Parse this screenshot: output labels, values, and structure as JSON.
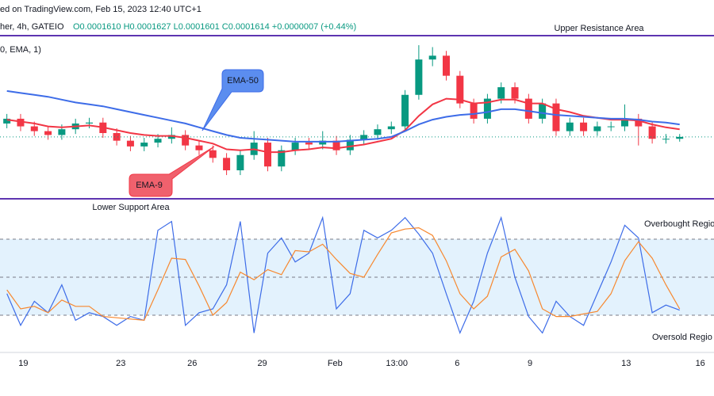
{
  "header": {
    "source": "ed on TradingView.com, Feb 15, 2023 12:40 UTC+1",
    "symbol": "her, 4h, GATEIO",
    "ohlc": "O0.0001610 H0.0001627 L0.0001601 C0.0001614 +0.0000007 (+0.44%)",
    "indicator": "0, EMA, 1)"
  },
  "chart_data": [
    {
      "type": "candlestick",
      "xlim": [
        -0.5,
        51.5
      ],
      "xticks": [
        {
          "value": 1.2,
          "label": "19"
        },
        {
          "value": 8.3,
          "label": "23"
        },
        {
          "value": 13.5,
          "label": "26"
        },
        {
          "value": 18.6,
          "label": "29"
        },
        {
          "value": 23.9,
          "label": "Feb"
        },
        {
          "value": 28.4,
          "label": "13:00"
        },
        {
          "value": 32.8,
          "label": "6"
        },
        {
          "value": 38.1,
          "label": "9"
        },
        {
          "value": 45.1,
          "label": "13"
        },
        {
          "value": 50.5,
          "label": "16"
        }
      ],
      "ylim": [
        0.000155,
        0.000172
      ],
      "up_color": "#089981",
      "down_color": "#f23645",
      "open": [
        0.0001628,
        0.0001633,
        0.0001625,
        0.000162,
        0.0001616,
        0.0001622,
        0.0001628,
        0.0001629,
        0.0001618,
        0.000161,
        0.0001604,
        0.0001608,
        0.0001612,
        0.0001616,
        0.0001605,
        0.00016,
        0.0001592,
        0.0001579,
        0.0001595,
        0.0001608,
        0.0001583,
        0.00016,
        0.0001608,
        0.0001606,
        0.000161,
        0.00016,
        0.0001611,
        0.0001616,
        0.0001622,
        0.0001625,
        0.0001658,
        0.0001695,
        0.0001699,
        0.0001678,
        0.0001649,
        0.0001633,
        0.0001654,
        0.0001666,
        0.0001654,
        0.0001633,
        0.0001649,
        0.000162,
        0.0001629,
        0.000162,
        0.0001625,
        0.0001625,
        0.0001633,
        0.0001625,
        0.0001612,
        0.0001612
      ],
      "high": [
        0.0001638,
        0.0001638,
        0.000163,
        0.0001625,
        0.0001627,
        0.0001633,
        0.0001634,
        0.0001634,
        0.0001623,
        0.0001615,
        0.0001613,
        0.0001617,
        0.0001624,
        0.0001621,
        0.000161,
        0.0001605,
        0.0001597,
        0.00016,
        0.000162,
        0.0001613,
        0.0001605,
        0.0001613,
        0.0001613,
        0.000162,
        0.0001615,
        0.0001616,
        0.0001621,
        0.0001627,
        0.000163,
        0.0001663,
        0.000171,
        0.0001708,
        0.0001704,
        0.0001683,
        0.0001654,
        0.0001659,
        0.0001671,
        0.0001671,
        0.0001659,
        0.0001654,
        0.0001654,
        0.0001634,
        0.0001634,
        0.000163,
        0.000163,
        0.0001648,
        0.0001638,
        0.000163,
        0.0001617,
        0.0001617
      ],
      "low": [
        0.0001623,
        0.000162,
        0.0001615,
        0.0001611,
        0.0001611,
        0.0001617,
        0.0001623,
        0.0001613,
        0.0001605,
        0.0001599,
        0.0001599,
        0.0001603,
        0.0001607,
        0.00016,
        0.0001595,
        0.0001587,
        0.0001574,
        0.0001574,
        0.000159,
        0.0001578,
        0.0001578,
        0.0001595,
        0.0001601,
        0.0001601,
        0.0001595,
        0.0001595,
        0.0001606,
        0.0001611,
        0.0001617,
        0.000162,
        0.0001653,
        0.0001688,
        0.0001673,
        0.0001644,
        0.0001628,
        0.0001628,
        0.0001649,
        0.0001649,
        0.0001628,
        0.0001628,
        0.0001615,
        0.0001615,
        0.0001615,
        0.0001615,
        0.000162,
        0.000162,
        0.0001605,
        0.0001607,
        0.0001607,
        0.0001609
      ],
      "close": [
        0.0001633,
        0.0001625,
        0.000162,
        0.0001616,
        0.0001622,
        0.0001628,
        0.0001629,
        0.0001618,
        0.000161,
        0.0001604,
        0.0001608,
        0.0001612,
        0.0001616,
        0.0001605,
        0.00016,
        0.0001592,
        0.0001579,
        0.0001595,
        0.0001608,
        0.0001583,
        0.00016,
        0.0001608,
        0.0001606,
        0.000161,
        0.00016,
        0.0001611,
        0.0001616,
        0.0001622,
        0.0001625,
        0.0001658,
        0.0001695,
        0.0001699,
        0.0001678,
        0.0001649,
        0.0001633,
        0.0001654,
        0.0001666,
        0.0001654,
        0.0001633,
        0.0001649,
        0.000162,
        0.0001629,
        0.000162,
        0.0001625,
        0.0001625,
        0.0001633,
        0.0001625,
        0.0001612,
        0.0001612,
        0.0001614
      ],
      "series": [
        {
          "name": "EMA-9",
          "color": "#f23645",
          "values": [
            0.0001632,
            0.000163,
            0.0001628,
            0.0001625,
            0.0001624,
            0.0001625,
            0.0001626,
            0.0001624,
            0.0001621,
            0.0001618,
            0.0001616,
            0.0001615,
            0.0001615,
            0.0001613,
            0.000161,
            0.0001607,
            0.0001601,
            0.00016,
            0.0001601,
            0.0001598,
            0.0001598,
            0.00016,
            0.0001601,
            0.0001603,
            0.0001602,
            0.0001604,
            0.0001606,
            0.0001609,
            0.0001612,
            0.0001621,
            0.0001636,
            0.0001648,
            0.0001654,
            0.0001653,
            0.0001649,
            0.000165,
            0.0001653,
            0.0001653,
            0.0001649,
            0.0001649,
            0.0001643,
            0.000164,
            0.0001636,
            0.0001634,
            0.0001632,
            0.0001632,
            0.0001631,
            0.0001627,
            0.0001624,
            0.0001622
          ]
        },
        {
          "name": "EMA-50",
          "color": "#3d6ce8",
          "values": [
            0.0001662,
            0.000166,
            0.0001658,
            0.0001656,
            0.0001653,
            0.000165,
            0.0001648,
            0.0001646,
            0.0001643,
            0.000164,
            0.0001637,
            0.0001634,
            0.0001631,
            0.0001628,
            0.0001624,
            0.000162,
            0.0001616,
            0.0001613,
            0.0001612,
            0.0001611,
            0.000161,
            0.0001609,
            0.0001609,
            0.0001609,
            0.0001609,
            0.000161,
            0.0001611,
            0.0001612,
            0.0001614,
            0.000162,
            0.0001627,
            0.0001632,
            0.0001635,
            0.0001637,
            0.0001638,
            0.000164,
            0.0001643,
            0.0001643,
            0.0001641,
            0.0001639,
            0.0001637,
            0.0001636,
            0.0001635,
            0.0001634,
            0.0001633,
            0.0001633,
            0.0001632,
            0.000163,
            0.0001629,
            0.0001627
          ]
        }
      ],
      "annotations": [
        "Upper Resistance Area",
        "Lower Support Area"
      ]
    },
    {
      "type": "line",
      "ylim": [
        0,
        100
      ],
      "levels": [
        80,
        50,
        20
      ],
      "band_color": "#e3f2fd",
      "series": [
        {
          "color": "#3d6ce8",
          "values": [
            37,
            12,
            31,
            22,
            44,
            16,
            22,
            19,
            12,
            19,
            16,
            87,
            94,
            12,
            22,
            25,
            44,
            94,
            6,
            69,
            81,
            62,
            69,
            97,
            25,
            37,
            87,
            81,
            87,
            97,
            84,
            69,
            37,
            6,
            31,
            69,
            97,
            50,
            19,
            6,
            31,
            19,
            12,
            37,
            62,
            91,
            81,
            22,
            28,
            24
          ]
        },
        {
          "color": "#f7882f",
          "values": [
            40,
            25,
            27,
            22,
            32,
            27,
            27,
            19,
            18,
            17,
            16,
            40,
            65,
            64,
            43,
            20,
            30,
            54,
            48,
            56,
            52,
            71,
            70,
            76,
            64,
            53,
            50,
            68,
            85,
            88,
            89,
            83,
            63,
            37,
            25,
            35,
            66,
            72,
            55,
            25,
            19,
            19,
            21,
            23,
            37,
            63,
            78,
            65,
            44,
            25
          ]
        }
      ],
      "annotations": [
        "Overbought Regio",
        "Oversold Regio"
      ]
    }
  ]
}
